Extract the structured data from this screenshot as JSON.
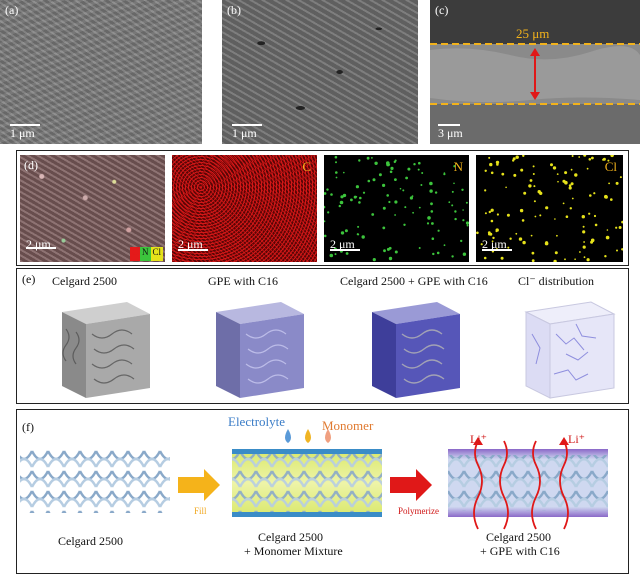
{
  "panel_a": {
    "label": "(a)",
    "scale": "1 μm"
  },
  "panel_b": {
    "label": "(b)",
    "scale": "1 μm"
  },
  "panel_c": {
    "label": "(c)",
    "scale": "3 μm",
    "thickness": "25 μm"
  },
  "panel_d": {
    "label": "(d)",
    "scale": "2 μm",
    "elements": [
      "C",
      "N",
      "Cl"
    ],
    "legend": [
      "C",
      "N",
      "Cl"
    ],
    "colors": {
      "C": "#e41a1a",
      "N": "#3cc43c",
      "Cl": "#e6e21a"
    }
  },
  "panel_e": {
    "label": "(e)",
    "titles": [
      "Celgard 2500",
      "GPE with C16",
      "Celgard 2500 + GPE with C16",
      "Cl⁻ distribution"
    ]
  },
  "panel_f": {
    "label": "(f)",
    "electrolyte": "Electrolyte",
    "monomer": "Monomer",
    "fill": "Fill",
    "polymerize": "Polymerize",
    "li": "Li⁺",
    "captions": [
      "Celgard 2500",
      "Celgard 2500",
      "+ Monomer Mixture",
      "Celgard 2500",
      "+ GPE with C16"
    ]
  }
}
